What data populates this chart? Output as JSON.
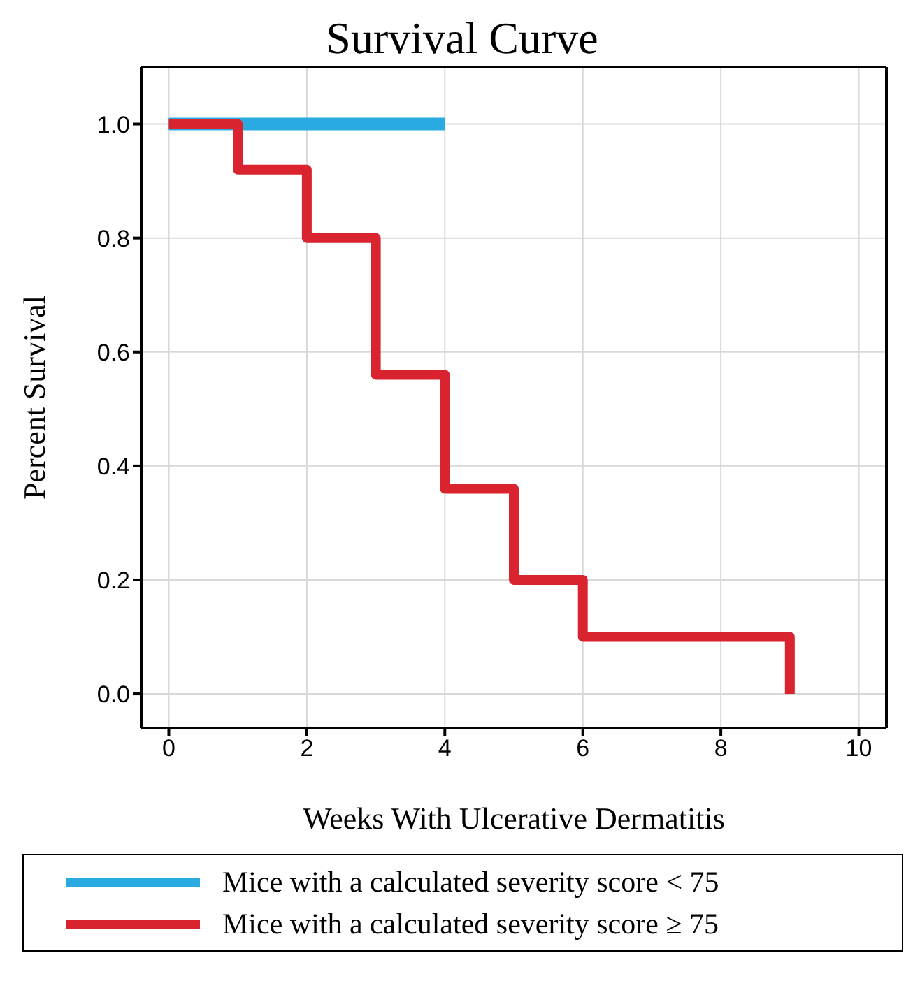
{
  "chart_data": {
    "type": "step",
    "title": "Survival Curve",
    "xlabel": "Weeks With Ulcerative Dermatitis",
    "ylabel": "Percent Survival",
    "xlim": [
      -0.4,
      10.4
    ],
    "xticks": [
      0,
      2,
      4,
      6,
      8,
      10
    ],
    "ylim": [
      -0.06,
      1.1
    ],
    "yticks": [
      {
        "value": 0,
        "label": "0.0"
      },
      {
        "value": 0.2,
        "label": "0.2"
      },
      {
        "value": 0.4,
        "label": "0.4"
      },
      {
        "value": 0.6,
        "label": "0.6"
      },
      {
        "value": 0.8,
        "label": "0.8"
      },
      {
        "value": 1,
        "label": "1.0"
      }
    ],
    "grid": true,
    "legend": "bottom",
    "line_style": "solid",
    "marker": "none",
    "series": [
      {
        "name": "Mice with a calculated severity score < 75",
        "color": "#29abe2",
        "x": [
          0,
          4
        ],
        "values": [
          1,
          1
        ]
      },
      {
        "name": "Mice with a calculated severity score ≥ 75",
        "color": "#d9232e",
        "x": [
          0,
          1,
          2,
          3,
          4,
          5,
          6,
          9
        ],
        "values": [
          1,
          0.92,
          0.8,
          0.56,
          0.36,
          0.2,
          0.1,
          0
        ]
      }
    ]
  }
}
